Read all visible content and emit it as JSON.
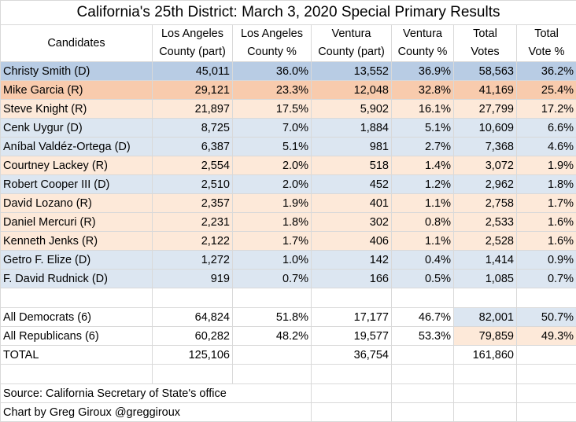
{
  "title": "California's 25th District: March 3, 2020 Special Primary Results",
  "colors": {
    "dem_light": "#dce6f1",
    "dem_highlight": "#b8cce4",
    "rep_light": "#fde9d9",
    "rep_highlight": "#f8cbad",
    "gridline": "#d9d9d9"
  },
  "headers": [
    [
      "Candidates"
    ],
    [
      "Los Angeles",
      "County (part)"
    ],
    [
      "Los Angeles",
      "County %"
    ],
    [
      "Ventura",
      "County (part)"
    ],
    [
      "Ventura",
      "County %"
    ],
    [
      "Total",
      "Votes"
    ],
    [
      "Total",
      "Vote %"
    ]
  ],
  "candidates": [
    {
      "name": "Christy Smith (D)",
      "party": "D",
      "lead": true,
      "la_votes": "45,011",
      "la_pct": "36.0%",
      "vc_votes": "13,552",
      "vc_pct": "36.9%",
      "total_votes": "58,563",
      "total_pct": "36.2%"
    },
    {
      "name": "Mike Garcia (R)",
      "party": "R",
      "lead": true,
      "la_votes": "29,121",
      "la_pct": "23.3%",
      "vc_votes": "12,048",
      "vc_pct": "32.8%",
      "total_votes": "41,169",
      "total_pct": "25.4%"
    },
    {
      "name": "Steve Knight (R)",
      "party": "R",
      "lead": false,
      "la_votes": "21,897",
      "la_pct": "17.5%",
      "vc_votes": "5,902",
      "vc_pct": "16.1%",
      "total_votes": "27,799",
      "total_pct": "17.2%"
    },
    {
      "name": "Cenk Uygur (D)",
      "party": "D",
      "lead": false,
      "la_votes": "8,725",
      "la_pct": "7.0%",
      "vc_votes": "1,884",
      "vc_pct": "5.1%",
      "total_votes": "10,609",
      "total_pct": "6.6%"
    },
    {
      "name": "Aníbal Valdéz-Ortega (D)",
      "party": "D",
      "lead": false,
      "la_votes": "6,387",
      "la_pct": "5.1%",
      "vc_votes": "981",
      "vc_pct": "2.7%",
      "total_votes": "7,368",
      "total_pct": "4.6%"
    },
    {
      "name": "Courtney Lackey (R)",
      "party": "R",
      "lead": false,
      "la_votes": "2,554",
      "la_pct": "2.0%",
      "vc_votes": "518",
      "vc_pct": "1.4%",
      "total_votes": "3,072",
      "total_pct": "1.9%"
    },
    {
      "name": "Robert Cooper III (D)",
      "party": "D",
      "lead": false,
      "la_votes": "2,510",
      "la_pct": "2.0%",
      "vc_votes": "452",
      "vc_pct": "1.2%",
      "total_votes": "2,962",
      "total_pct": "1.8%"
    },
    {
      "name": "David Lozano (R)",
      "party": "R",
      "lead": false,
      "la_votes": "2,357",
      "la_pct": "1.9%",
      "vc_votes": "401",
      "vc_pct": "1.1%",
      "total_votes": "2,758",
      "total_pct": "1.7%"
    },
    {
      "name": "Daniel Mercuri (R)",
      "party": "R",
      "lead": false,
      "la_votes": "2,231",
      "la_pct": "1.8%",
      "vc_votes": "302",
      "vc_pct": "0.8%",
      "total_votes": "2,533",
      "total_pct": "1.6%"
    },
    {
      "name": "Kenneth Jenks (R)",
      "party": "R",
      "lead": false,
      "la_votes": "2,122",
      "la_pct": "1.7%",
      "vc_votes": "406",
      "vc_pct": "1.1%",
      "total_votes": "2,528",
      "total_pct": "1.6%"
    },
    {
      "name": "Getro F. Elize (D)",
      "party": "D",
      "lead": false,
      "la_votes": "1,272",
      "la_pct": "1.0%",
      "vc_votes": "142",
      "vc_pct": "0.4%",
      "total_votes": "1,414",
      "total_pct": "0.9%"
    },
    {
      "name": "F. David Rudnick (D)",
      "party": "D",
      "lead": false,
      "la_votes": "919",
      "la_pct": "0.7%",
      "vc_votes": "166",
      "vc_pct": "0.5%",
      "total_votes": "1,085",
      "total_pct": "0.7%"
    }
  ],
  "totals": [
    {
      "label": "All Democrats (6)",
      "party": "D",
      "la_votes": "64,824",
      "la_pct": "51.8%",
      "vc_votes": "17,177",
      "vc_pct": "46.7%",
      "total_votes": "82,001",
      "total_pct": "50.7%"
    },
    {
      "label": "All Republicans (6)",
      "party": "R",
      "la_votes": "60,282",
      "la_pct": "48.2%",
      "vc_votes": "19,577",
      "vc_pct": "53.3%",
      "total_votes": "79,859",
      "total_pct": "49.3%"
    },
    {
      "label": "TOTAL",
      "party": "",
      "la_votes": "125,106",
      "la_pct": "",
      "vc_votes": "36,754",
      "vc_pct": "",
      "total_votes": "161,860",
      "total_pct": ""
    }
  ],
  "footer": {
    "source": "Source: California Secretary of State's office",
    "credit": "Chart by Greg Giroux @greggiroux"
  },
  "chart_data": {
    "type": "table",
    "title": "California's 25th District: March 3, 2020 Special Primary Results",
    "columns": [
      "Candidates",
      "Los Angeles County (part)",
      "Los Angeles County %",
      "Ventura County (part)",
      "Ventura County %",
      "Total Votes",
      "Total Vote %"
    ],
    "rows": [
      [
        "Christy Smith (D)",
        45011,
        36.0,
        13552,
        36.9,
        58563,
        36.2
      ],
      [
        "Mike Garcia (R)",
        29121,
        23.3,
        12048,
        32.8,
        41169,
        25.4
      ],
      [
        "Steve Knight (R)",
        21897,
        17.5,
        5902,
        16.1,
        27799,
        17.2
      ],
      [
        "Cenk Uygur (D)",
        8725,
        7.0,
        1884,
        5.1,
        10609,
        6.6
      ],
      [
        "Aníbal Valdéz-Ortega (D)",
        6387,
        5.1,
        981,
        2.7,
        7368,
        4.6
      ],
      [
        "Courtney Lackey (R)",
        2554,
        2.0,
        518,
        1.4,
        3072,
        1.9
      ],
      [
        "Robert Cooper III (D)",
        2510,
        2.0,
        452,
        1.2,
        2962,
        1.8
      ],
      [
        "David Lozano (R)",
        2357,
        1.9,
        401,
        1.1,
        2758,
        1.7
      ],
      [
        "Daniel Mercuri (R)",
        2231,
        1.8,
        302,
        0.8,
        2533,
        1.6
      ],
      [
        "Kenneth Jenks (R)",
        2122,
        1.7,
        406,
        1.1,
        2528,
        1.6
      ],
      [
        "Getro F. Elize (D)",
        1272,
        1.0,
        142,
        0.4,
        1414,
        0.9
      ],
      [
        "F. David Rudnick (D)",
        919,
        0.7,
        166,
        0.5,
        1085,
        0.7
      ]
    ],
    "summary_rows": [
      [
        "All Democrats (6)",
        64824,
        51.8,
        17177,
        46.7,
        82001,
        50.7
      ],
      [
        "All Republicans (6)",
        60282,
        48.2,
        19577,
        53.3,
        79859,
        49.3
      ],
      [
        "TOTAL",
        125106,
        null,
        36754,
        null,
        161860,
        null
      ]
    ]
  }
}
